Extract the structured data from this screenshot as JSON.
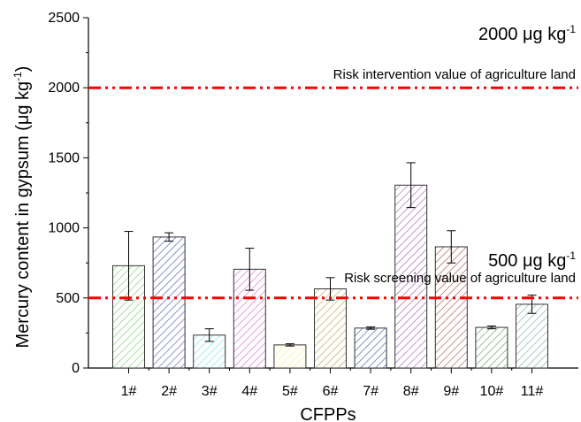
{
  "chart_data": {
    "type": "bar",
    "categories": [
      "1#",
      "2#",
      "3#",
      "4#",
      "5#",
      "6#",
      "7#",
      "8#",
      "9#",
      "10#",
      "11#"
    ],
    "values": [
      730,
      935,
      235,
      705,
      165,
      565,
      285,
      1305,
      865,
      290,
      455
    ],
    "errors": [
      245,
      30,
      45,
      150,
      8,
      80,
      8,
      160,
      115,
      10,
      65
    ],
    "xlabel": "CFPPs",
    "ylabel": "Mercury content in gypsum (μg kg",
    "ylabel_superscript": "-1",
    "ylabel_suffix": ")",
    "ylim": [
      0,
      2500
    ],
    "yticks": [
      0,
      500,
      1000,
      1500,
      2000,
      2500
    ],
    "bar_colors": [
      "#6fd35e",
      "#4b57b5",
      "#62e2df",
      "#d45ad6",
      "#f1f06e",
      "#b0a253",
      "#4a55a8",
      "#9b5aa7",
      "#a44b4b",
      "#5c8a57",
      "#6ba7a1"
    ],
    "reference_lines": [
      {
        "value": 2000,
        "main": "2000 μg kg",
        "main_superscript": "-1",
        "sub": "Risk intervention value of agriculture land",
        "color": "#ff0000"
      },
      {
        "value": 500,
        "main": "500 μg kg",
        "main_superscript": "-1",
        "sub": "Risk screening value of agriculture land",
        "color": "#ff0000"
      }
    ]
  }
}
